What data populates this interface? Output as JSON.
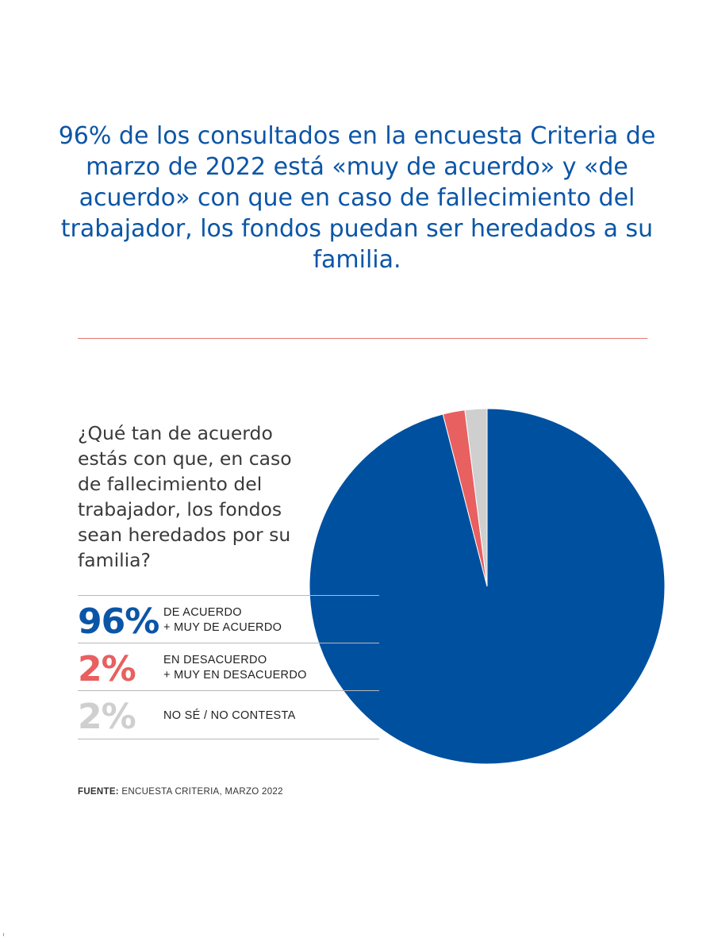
{
  "headline": "96%  de los consultados en la encuesta Criteria de marzo de 2022 está «muy de acuerdo»  y «de acuerdo» con que en caso de fallecimiento del trabajador, los fondos puedan ser heredados a su familia.",
  "question": "¿Qué tan de acuerdo estás con que, en caso de fallecimiento del trabajador, los fondos sean heredados por su familia?",
  "legend": [
    {
      "pct": "96%",
      "line1": "DE ACUERDO",
      "line2": "+ MUY DE ACUERDO"
    },
    {
      "pct": "2%",
      "line1": "EN DESACUERDO",
      "line2": "+ MUY EN DESACUERDO"
    },
    {
      "pct": "2%",
      "line1": "NO SÉ / NO CONTESTA",
      "line2": ""
    }
  ],
  "source": {
    "label": "FUENTE:",
    "text": " ENCUESTA CRITERIA, MARZO 2022"
  },
  "chart_data": {
    "type": "pie",
    "categories": [
      "DE ACUERDO + MUY DE ACUERDO",
      "EN DESACUERDO + MUY EN DESACUERDO",
      "NO SÉ / NO CONTESTA"
    ],
    "values": [
      96,
      2,
      2
    ],
    "colors": [
      "#0050a0",
      "#e8605f",
      "#cfcfcf"
    ],
    "start": "12 o'clock",
    "direction": "clockwise"
  }
}
